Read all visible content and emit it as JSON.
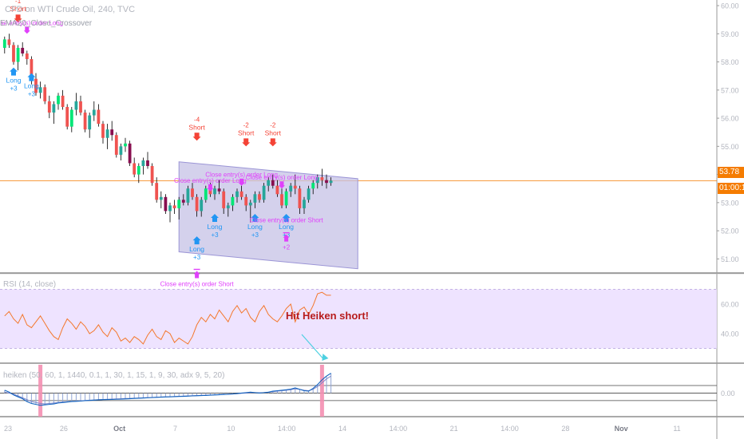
{
  "symbol_title": "CFD on WTI Crude Oil, 240, TVC",
  "strategy_title": "EMA20_Close_Crossover",
  "current_price_label": "53.78",
  "countdown_label": "01:00:1",
  "annotation": "Hit Heiken short!",
  "rsi_title": "RSI (14, close)",
  "heiken_title": "heiken (50, 60, 1, 1440, 0.1, 1, 30, 1, 15, 1, 9, 30, adx 9, 5, 20)",
  "colors": {
    "bull": "#26a69a",
    "bull_bright": "#00e676",
    "bear": "#ef5350",
    "bear_dark": "#880e4f",
    "wick": "#000000",
    "long_arrow": "#2196f3",
    "short_arrow": "#f44336",
    "close_arrow": "#e040fb",
    "channel_fill": "#c5c2e6",
    "channel_stroke": "#9b95d6",
    "price_line": "#f57c00",
    "rsi_line": "#f4772c",
    "rsi_band": "#eadcff",
    "heik_line_1": "#1565c0",
    "heik_line_2": "#7986cb",
    "heik_hist": "#90a4d4",
    "signal_bar": "#f48fb1",
    "annot_arrow": "#4dd0e1"
  },
  "chart_data": {
    "type": "candlestick",
    "price_axis": {
      "ticks": [
        60.0,
        59.0,
        58.0,
        57.0,
        56.0,
        55.0,
        54.0,
        53.0,
        52.0,
        51.0
      ],
      "labels": [
        "60.00",
        "59.00",
        "58.00",
        "57.00",
        "56.00",
        "55.00",
        "54.00",
        "53.00",
        "52.00",
        "51.00"
      ],
      "ylim": [
        50.5,
        60.2
      ]
    },
    "current_price": 53.78,
    "time_axis": {
      "labels": [
        "23",
        "26",
        "Oct",
        "7",
        "10",
        "14:00",
        "14",
        "14:00",
        "21",
        "14:00",
        "28",
        "Nov",
        "11"
      ],
      "bold": [
        false,
        false,
        true,
        false,
        false,
        false,
        false,
        false,
        false,
        false,
        false,
        true,
        false
      ]
    },
    "bar_count": 74,
    "candles": [
      [
        58.5,
        58.9,
        58.3,
        58.8
      ],
      [
        58.8,
        59.0,
        58.5,
        58.6
      ],
      [
        58.6,
        58.7,
        57.9,
        58.0
      ],
      [
        58.0,
        58.6,
        57.7,
        58.5
      ],
      [
        58.5,
        58.7,
        58.2,
        58.3
      ],
      [
        58.3,
        58.4,
        57.9,
        58.1
      ],
      [
        58.1,
        58.2,
        57.2,
        57.4
      ],
      [
        57.4,
        57.6,
        56.8,
        56.9
      ],
      [
        56.9,
        57.3,
        56.7,
        57.1
      ],
      [
        57.1,
        57.2,
        56.5,
        56.6
      ],
      [
        56.6,
        56.8,
        56.0,
        56.2
      ],
      [
        56.2,
        56.6,
        55.8,
        56.5
      ],
      [
        56.5,
        56.9,
        56.3,
        56.8
      ],
      [
        56.8,
        57.0,
        56.3,
        56.4
      ],
      [
        56.4,
        56.5,
        55.6,
        55.7
      ],
      [
        55.7,
        56.4,
        55.5,
        56.3
      ],
      [
        56.3,
        56.9,
        56.1,
        56.6
      ],
      [
        56.6,
        56.8,
        56.1,
        56.2
      ],
      [
        56.2,
        56.3,
        55.5,
        55.6
      ],
      [
        55.6,
        56.2,
        55.3,
        56.1
      ],
      [
        56.1,
        56.6,
        55.9,
        56.3
      ],
      [
        56.3,
        56.5,
        55.7,
        55.8
      ],
      [
        55.8,
        55.9,
        55.1,
        55.3
      ],
      [
        55.3,
        55.8,
        54.9,
        55.6
      ],
      [
        55.6,
        55.9,
        55.2,
        55.4
      ],
      [
        55.4,
        55.5,
        54.6,
        54.7
      ],
      [
        54.7,
        55.1,
        54.5,
        55.0
      ],
      [
        55.0,
        55.3,
        54.8,
        55.1
      ],
      [
        55.1,
        55.2,
        54.3,
        54.4
      ],
      [
        54.4,
        54.6,
        53.9,
        54.0
      ],
      [
        54.0,
        54.4,
        53.7,
        54.3
      ],
      [
        54.3,
        54.6,
        54.0,
        54.5
      ],
      [
        54.5,
        54.8,
        54.2,
        54.3
      ],
      [
        54.3,
        54.4,
        53.6,
        53.7
      ],
      [
        53.7,
        53.9,
        53.0,
        53.1
      ],
      [
        53.1,
        53.4,
        52.8,
        53.2
      ],
      [
        53.2,
        53.3,
        52.6,
        52.7
      ],
      [
        52.7,
        53.0,
        52.3,
        52.9
      ],
      [
        52.9,
        53.1,
        52.6,
        52.8
      ],
      [
        52.8,
        53.2,
        52.4,
        53.1
      ],
      [
        53.1,
        53.3,
        52.9,
        53.0
      ],
      [
        53.0,
        53.6,
        52.9,
        53.5
      ],
      [
        53.5,
        53.7,
        53.1,
        53.2
      ],
      [
        53.2,
        53.3,
        52.5,
        52.7
      ],
      [
        52.7,
        53.2,
        52.5,
        53.1
      ],
      [
        53.1,
        53.6,
        53.0,
        53.5
      ],
      [
        53.5,
        53.7,
        53.2,
        53.3
      ],
      [
        53.3,
        53.6,
        53.1,
        53.5
      ],
      [
        53.5,
        53.8,
        53.3,
        53.4
      ],
      [
        53.4,
        53.5,
        52.6,
        52.8
      ],
      [
        52.8,
        53.0,
        52.5,
        52.9
      ],
      [
        52.9,
        53.3,
        52.7,
        53.2
      ],
      [
        53.2,
        53.5,
        53.0,
        53.4
      ],
      [
        53.4,
        53.6,
        53.1,
        53.2
      ],
      [
        53.2,
        53.3,
        52.7,
        52.9
      ],
      [
        52.9,
        53.1,
        52.3,
        53.0
      ],
      [
        53.0,
        53.4,
        52.8,
        53.3
      ],
      [
        53.3,
        53.4,
        53.0,
        53.1
      ],
      [
        53.1,
        53.7,
        53.0,
        53.6
      ],
      [
        53.6,
        53.9,
        53.4,
        53.8
      ],
      [
        53.8,
        54.0,
        53.5,
        53.6
      ],
      [
        53.6,
        53.8,
        53.2,
        53.3
      ],
      [
        53.3,
        53.5,
        52.8,
        52.9
      ],
      [
        52.9,
        53.5,
        52.8,
        53.4
      ],
      [
        53.4,
        53.7,
        53.2,
        53.6
      ],
      [
        53.6,
        54.0,
        53.3,
        53.5
      ],
      [
        53.5,
        53.6,
        52.6,
        52.8
      ],
      [
        52.8,
        53.2,
        52.6,
        53.1
      ],
      [
        53.1,
        53.6,
        53.0,
        53.5
      ],
      [
        53.5,
        53.8,
        53.3,
        53.7
      ],
      [
        53.7,
        54.0,
        53.5,
        53.9
      ],
      [
        53.9,
        54.2,
        53.6,
        53.8
      ],
      [
        53.8,
        54.0,
        53.5,
        53.7
      ],
      [
        53.7,
        53.9,
        53.6,
        53.78
      ]
    ],
    "channel": {
      "start_bar": 39,
      "end_bar": 79,
      "upper": [
        54.45,
        53.85
      ],
      "lower": [
        51.25,
        50.65
      ]
    },
    "signals": [
      {
        "type": "short",
        "bar": 3,
        "price": 59.4,
        "label": "Short",
        "qty": "-1"
      },
      {
        "type": "close",
        "bar": 5,
        "price": 59.0,
        "label": "Close entry(s) order Long"
      },
      {
        "type": "long",
        "bar": 2,
        "price": 57.8,
        "label": "Long",
        "qty": "+3"
      },
      {
        "type": "long",
        "bar": 6,
        "price": 57.6,
        "label": "Long",
        "qty": "+3"
      },
      {
        "type": "short",
        "bar": 43,
        "price": 55.2,
        "label": "Short",
        "qty": "-4"
      },
      {
        "type": "short",
        "bar": 54,
        "price": 55.0,
        "label": "Short",
        "qty": "-2"
      },
      {
        "type": "short",
        "bar": 60,
        "price": 55.0,
        "label": "Short",
        "qty": "-2"
      },
      {
        "type": "close",
        "bar": 46,
        "price": 53.4,
        "label": "Close entry(s) order Long"
      },
      {
        "type": "close",
        "bar": 53,
        "price": 53.6,
        "label": "Close entry(s) order Long"
      },
      {
        "type": "close",
        "bar": 62,
        "price": 53.5,
        "label": "Close entry(s) order Long"
      },
      {
        "type": "long",
        "bar": 47,
        "price": 52.6,
        "label": "Long",
        "qty": "+3"
      },
      {
        "type": "long",
        "bar": 56,
        "price": 52.6,
        "label": "Long",
        "qty": "+3"
      },
      {
        "type": "long",
        "bar": 63,
        "price": 52.6,
        "label": "Long",
        "qty": "+3"
      },
      {
        "type": "long",
        "bar": 43,
        "price": 51.8,
        "label": "Long",
        "qty": "+3"
      },
      {
        "type": "close_up",
        "bar": 43,
        "price": 50.6,
        "label": "Close entry(s) order Short"
      },
      {
        "type": "close_up",
        "bar": 63,
        "price": 51.9,
        "label": "Close entry(s) order Short",
        "qty": "+2"
      }
    ],
    "rsi": {
      "axis_ticks": [
        60.0,
        40.0
      ],
      "axis_labels": [
        "60.00",
        "40.00"
      ],
      "band": [
        30,
        70
      ],
      "values": [
        52,
        55,
        50,
        47,
        53,
        46,
        44,
        48,
        52,
        47,
        42,
        38,
        36,
        44,
        50,
        47,
        43,
        48,
        45,
        40,
        42,
        46,
        41,
        38,
        44,
        41,
        35,
        37,
        34,
        38,
        36,
        33,
        39,
        43,
        38,
        36,
        42,
        40,
        34,
        37,
        35,
        33,
        38,
        46,
        51,
        48,
        53,
        50,
        56,
        52,
        48,
        55,
        59,
        54,
        57,
        51,
        48,
        55,
        59,
        53,
        50,
        48,
        52,
        57,
        60,
        48,
        56,
        58,
        53,
        59,
        67,
        68,
        66,
        66
      ]
    },
    "heiken": {
      "axis_ticks": [
        0.0
      ],
      "axis_labels": [
        "0.00"
      ],
      "line1": [
        0.3,
        0.1,
        -0.2,
        -0.4,
        -0.6,
        -0.9,
        -1.1,
        -1.2,
        -1.3,
        -1.25,
        -1.2,
        -1.15,
        -1.05,
        -1.0,
        -0.95,
        -0.9,
        -0.88,
        -0.85,
        -0.8,
        -0.78,
        -0.75,
        -0.72,
        -0.7,
        -0.69,
        -0.68,
        -0.66,
        -0.65,
        -0.62,
        -0.6,
        -0.57,
        -0.55,
        -0.53,
        -0.5,
        -0.48,
        -0.45,
        -0.43,
        -0.41,
        -0.4,
        -0.38,
        -0.36,
        -0.35,
        -0.33,
        -0.3,
        -0.28,
        -0.26,
        -0.25,
        -0.22,
        -0.2,
        -0.18,
        -0.15,
        -0.13,
        -0.1,
        -0.05,
        0.0,
        0.05,
        0.1,
        0.05,
        0.0,
        0.05,
        0.1,
        0.2,
        0.25,
        0.3,
        0.35,
        0.42,
        0.55,
        0.4,
        0.25,
        0.2,
        0.5,
        0.9,
        1.4,
        1.8,
        2.1
      ],
      "line2": [
        0.1,
        0.0,
        -0.1,
        -0.3,
        -0.5,
        -0.7,
        -0.9,
        -1.0,
        -1.1,
        -1.15,
        -1.1,
        -1.05,
        -1.0,
        -0.95,
        -0.92,
        -0.88,
        -0.85,
        -0.82,
        -0.79,
        -0.76,
        -0.73,
        -0.7,
        -0.68,
        -0.66,
        -0.64,
        -0.62,
        -0.6,
        -0.58,
        -0.56,
        -0.54,
        -0.52,
        -0.5,
        -0.48,
        -0.46,
        -0.44,
        -0.42,
        -0.4,
        -0.38,
        -0.36,
        -0.34,
        -0.32,
        -0.3,
        -0.28,
        -0.26,
        -0.24,
        -0.22,
        -0.2,
        -0.18,
        -0.16,
        -0.14,
        -0.12,
        -0.1,
        -0.07,
        -0.03,
        0.0,
        0.05,
        0.05,
        0.04,
        0.05,
        0.08,
        0.14,
        0.2,
        0.25,
        0.3,
        0.36,
        0.45,
        0.4,
        0.3,
        0.25,
        0.4,
        0.7,
        1.1,
        1.5,
        1.8
      ],
      "ylim": [
        -2.5,
        3.0
      ],
      "signal_bars": [
        8,
        71
      ]
    }
  }
}
